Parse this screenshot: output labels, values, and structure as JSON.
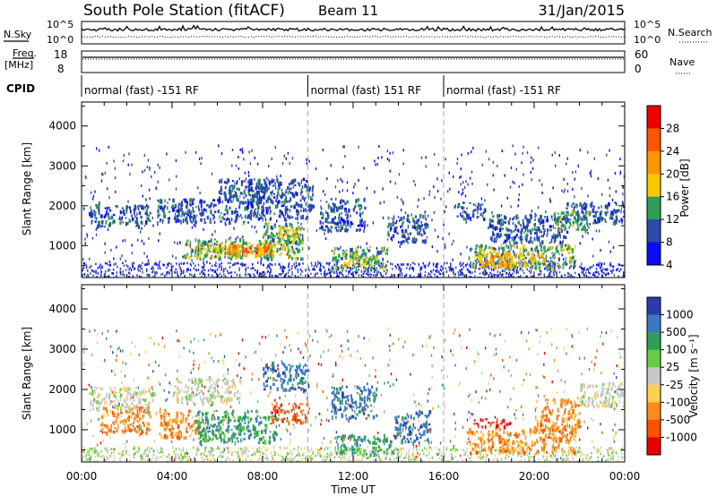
{
  "header": {
    "title": "South Pole Station (fitACF)",
    "beam": "Beam 11",
    "date": "31/Jan/2015"
  },
  "status_panels": {
    "nsky_label": "N.Sky",
    "nsearch_label": "N.Search",
    "freq_label_1": "Freq.",
    "freq_label_2": "[MHz]",
    "nave_label": "Nave",
    "cpid_label": "CPID",
    "noise_ticks": [
      "10^5",
      "10^0"
    ],
    "freq_ticks": [
      "18",
      "8"
    ],
    "nave_ticks": [
      "60",
      "0"
    ]
  },
  "cpid_segments": [
    {
      "label": "normal (fast) -151 RF",
      "start_hour": 0,
      "end_hour": 10
    },
    {
      "label": "normal (fast) 151 RF",
      "start_hour": 10,
      "end_hour": 16
    },
    {
      "label": "normal (fast) -151 RF",
      "start_hour": 16,
      "end_hour": 24
    }
  ],
  "chart_data": [
    {
      "type": "heatmap",
      "name": "power",
      "ylabel": "Slant Range [km]",
      "xlabel": "",
      "xlim": [
        0,
        24
      ],
      "ylim": [
        200,
        4600
      ],
      "yticks": [
        1000,
        2000,
        3000,
        4000
      ],
      "colorbar": {
        "label": "Power [dB]",
        "ticks": [
          "28",
          "24",
          "20",
          "16",
          "12",
          "8",
          "4"
        ],
        "colors": [
          "#f00000",
          "#ff5500",
          "#ff9600",
          "#f5c800",
          "#2e9e54",
          "#2a4aaa",
          "#0a0aff"
        ]
      },
      "echo_regions": [
        {
          "x0": 0.3,
          "x1": 3.0,
          "y0": 1500,
          "y1": 2050,
          "level": 5
        },
        {
          "x0": 3.3,
          "x1": 7.6,
          "y0": 1600,
          "y1": 2200,
          "level": 5
        },
        {
          "x0": 6.0,
          "x1": 8.2,
          "y0": 2100,
          "y1": 2700,
          "level": 5
        },
        {
          "x0": 7.3,
          "x1": 10.2,
          "y0": 1700,
          "y1": 2700,
          "level": 5
        },
        {
          "x0": 10.5,
          "x1": 12.5,
          "y0": 1400,
          "y1": 2200,
          "level": 5
        },
        {
          "x0": 13.5,
          "x1": 15.3,
          "y0": 1100,
          "y1": 1800,
          "level": 5
        },
        {
          "x0": 16.5,
          "x1": 17.8,
          "y0": 1700,
          "y1": 2100,
          "level": 5
        },
        {
          "x0": 18.0,
          "x1": 21.5,
          "y0": 1100,
          "y1": 1800,
          "level": 5
        },
        {
          "x0": 21.3,
          "x1": 24.0,
          "y0": 1600,
          "y1": 2100,
          "level": 5
        },
        {
          "x0": 4.5,
          "x1": 9.8,
          "y0": 700,
          "y1": 1200,
          "level": 4
        },
        {
          "x0": 8.0,
          "x1": 9.8,
          "y0": 1100,
          "y1": 1600,
          "level": 4
        },
        {
          "x0": 11.0,
          "x1": 13.5,
          "y0": 400,
          "y1": 1000,
          "level": 4
        },
        {
          "x0": 17.0,
          "x1": 21.8,
          "y0": 450,
          "y1": 1050,
          "level": 4
        },
        {
          "x0": 20.8,
          "x1": 22.7,
          "y0": 1400,
          "y1": 1900,
          "level": 4
        },
        {
          "x0": 5.0,
          "x1": 9.2,
          "y0": 750,
          "y1": 1100,
          "level": 3
        },
        {
          "x0": 8.6,
          "x1": 9.6,
          "y0": 1200,
          "y1": 1500,
          "level": 3
        },
        {
          "x0": 11.5,
          "x1": 12.8,
          "y0": 500,
          "y1": 800,
          "level": 3
        },
        {
          "x0": 17.2,
          "x1": 20.6,
          "y0": 500,
          "y1": 850,
          "level": 3
        },
        {
          "x0": 6.3,
          "x1": 8.6,
          "y0": 800,
          "y1": 1050,
          "level": 2
        },
        {
          "x0": 17.5,
          "x1": 19.0,
          "y0": 500,
          "y1": 750,
          "level": 2
        },
        {
          "x0": 7.0,
          "x1": 8.2,
          "y0": 850,
          "y1": 1000,
          "level": 1
        }
      ]
    },
    {
      "type": "heatmap",
      "name": "velocity",
      "ylabel": "Slant Range [km]",
      "xlabel": "Time UT",
      "xlim": [
        0,
        24
      ],
      "ylim": [
        200,
        4600
      ],
      "yticks": [
        1000,
        2000,
        3000,
        4000
      ],
      "xticks": [
        "00:00",
        "04:00",
        "08:00",
        "12:00",
        "16:00",
        "20:00",
        "00:00"
      ],
      "colorbar": {
        "label": "Velocity [m s⁻¹]",
        "ticks": [
          "1000",
          "500",
          "100",
          "25",
          "-25",
          "-100",
          "-500",
          "-1000"
        ],
        "colors": [
          "#2a3bb0",
          "#3a78c6",
          "#2e9e5a",
          "#66cc44",
          "#c8c8c8",
          "#ffd050",
          "#ff8c1a",
          "#ff5000",
          "#e80000"
        ]
      },
      "echo_regions": [
        {
          "x0": 0.3,
          "x1": 3.2,
          "y0": 1500,
          "y1": 2100,
          "level": 4
        },
        {
          "x0": 4.0,
          "x1": 7.0,
          "y0": 1700,
          "y1": 2300,
          "level": 4
        },
        {
          "x0": 8.0,
          "x1": 10.0,
          "y0": 2000,
          "y1": 2700,
          "level": 1
        },
        {
          "x0": 11.0,
          "x1": 13.0,
          "y0": 1300,
          "y1": 2100,
          "level": 1
        },
        {
          "x0": 0.8,
          "x1": 3.0,
          "y0": 900,
          "y1": 1600,
          "level": 6
        },
        {
          "x0": 3.4,
          "x1": 5.2,
          "y0": 800,
          "y1": 1500,
          "level": 6
        },
        {
          "x0": 5.0,
          "x1": 8.6,
          "y0": 700,
          "y1": 1500,
          "level": 2
        },
        {
          "x0": 8.3,
          "x1": 10.0,
          "y0": 1200,
          "y1": 1700,
          "level": 7
        },
        {
          "x0": 11.2,
          "x1": 13.8,
          "y0": 400,
          "y1": 900,
          "level": 2
        },
        {
          "x0": 13.8,
          "x1": 15.4,
          "y0": 700,
          "y1": 1500,
          "level": 1
        },
        {
          "x0": 17.0,
          "x1": 21.8,
          "y0": 450,
          "y1": 1050,
          "level": 6
        },
        {
          "x0": 20.0,
          "x1": 22.0,
          "y0": 1000,
          "y1": 1800,
          "level": 6
        },
        {
          "x0": 22.0,
          "x1": 24.0,
          "y0": 1600,
          "y1": 2200,
          "level": 4
        },
        {
          "x0": 17.3,
          "x1": 19.0,
          "y0": 1100,
          "y1": 1300,
          "level": 8
        }
      ]
    }
  ]
}
